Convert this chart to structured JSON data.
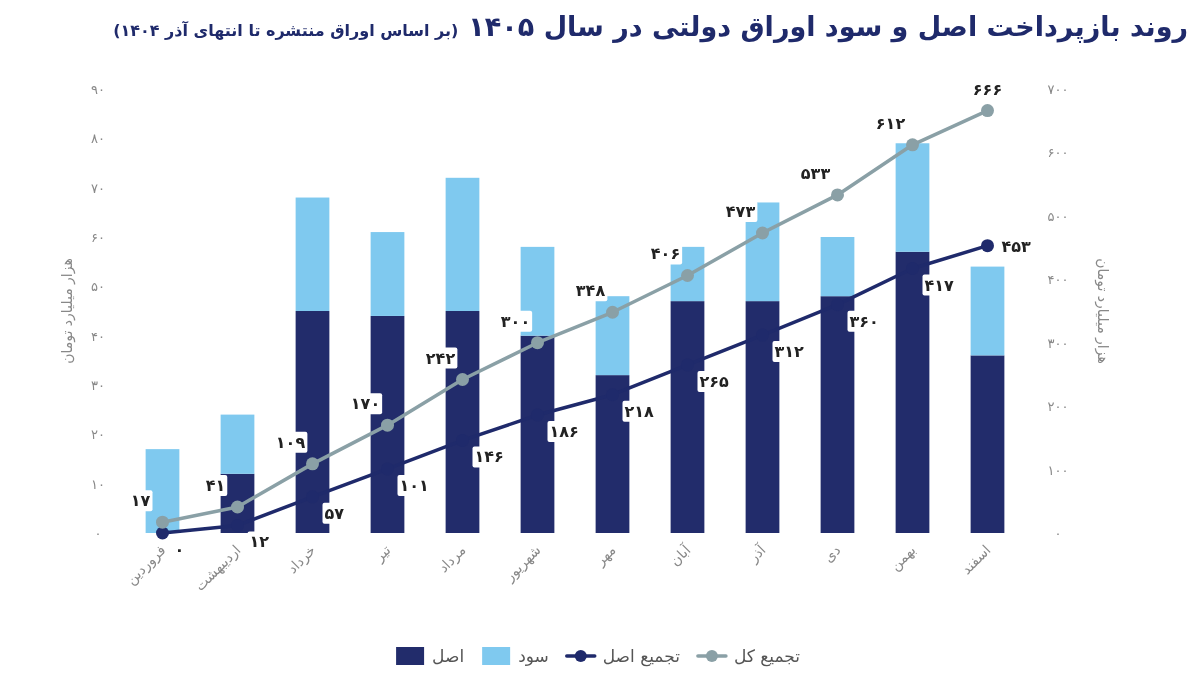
{
  "chart_data": {
    "type": "bar",
    "stacked": true,
    "title": "روند بازپرداخت اصل و سود اوراق دولتی در سال ۱۴۰۵",
    "subtitle": "(بر اساس اوراق منتشره تا انتهای آذر ۱۴۰۴)",
    "categories": [
      "فروردین",
      "اردیبهشت",
      "خرداد",
      "تیر",
      "مرداد",
      "شهریور",
      "مهر",
      "آبان",
      "آذر",
      "دی",
      "بهمن",
      "اسفند"
    ],
    "series": [
      {
        "name": "اصل",
        "color": "#222c6b",
        "values": [
          0,
          12,
          45,
          44,
          45,
          40,
          32,
          47,
          47,
          48,
          57,
          36
        ]
      },
      {
        "name": "سود",
        "color": "#7fc9ef",
        "values": [
          17,
          12,
          23,
          17,
          27,
          18,
          16,
          11,
          20,
          12,
          22,
          18
        ]
      },
      {
        "name": "تجمیع اصل",
        "type": "line",
        "axis": "y2",
        "marker": "circle",
        "color": "#1f2a6b",
        "values": [
          0,
          12,
          57,
          101,
          146,
          186,
          218,
          265,
          312,
          360,
          417,
          453
        ],
        "value_labels": [
          "۰",
          "۱۲",
          "۵۷",
          "۱۰۱",
          "۱۴۶",
          "۱۸۶",
          "۲۱۸",
          "۲۶۵",
          "۳۱۲",
          "۳۶۰",
          "۴۱۷",
          "۴۵۳"
        ]
      },
      {
        "name": "تجمیع کل",
        "type": "line",
        "axis": "y2",
        "marker": "circle",
        "color": "#8aa0a6",
        "values": [
          17,
          41,
          109,
          170,
          242,
          300,
          348,
          406,
          473,
          533,
          612,
          666
        ],
        "value_labels": [
          "۱۷",
          "۴۱",
          "۱۰۹",
          "۱۷۰",
          "۲۴۲",
          "۳۰۰",
          "۳۴۸",
          "۴۰۶",
          "۴۷۳",
          "۵۳۳",
          "۶۱۲",
          "۶۶۶"
        ]
      }
    ],
    "ylabel": "هزار میلیارد تومان",
    "y2label": "هزار میلیارد تومان",
    "ylim": [
      0,
      90
    ],
    "yticks": [
      {
        "value": 0,
        "label": "۰"
      },
      {
        "value": 10,
        "label": "۱۰"
      },
      {
        "value": 20,
        "label": "۲۰"
      },
      {
        "value": 30,
        "label": "۳۰"
      },
      {
        "value": 40,
        "label": "۴۰"
      },
      {
        "value": 50,
        "label": "۵۰"
      },
      {
        "value": 60,
        "label": "۶۰"
      },
      {
        "value": 70,
        "label": "۷۰"
      },
      {
        "value": 80,
        "label": "۸۰"
      },
      {
        "value": 90,
        "label": "۹۰"
      }
    ],
    "y2lim": [
      0,
      700
    ],
    "y2ticks": [
      {
        "value": 0,
        "label": "۰"
      },
      {
        "value": 100,
        "label": "۱۰۰"
      },
      {
        "value": 200,
        "label": "۲۰۰"
      },
      {
        "value": 300,
        "label": "۳۰۰"
      },
      {
        "value": 400,
        "label": "۴۰۰"
      },
      {
        "value": 500,
        "label": "۵۰۰"
      },
      {
        "value": 600,
        "label": "۶۰۰"
      },
      {
        "value": 700,
        "label": "۷۰۰"
      }
    ],
    "legend": "bottom"
  }
}
